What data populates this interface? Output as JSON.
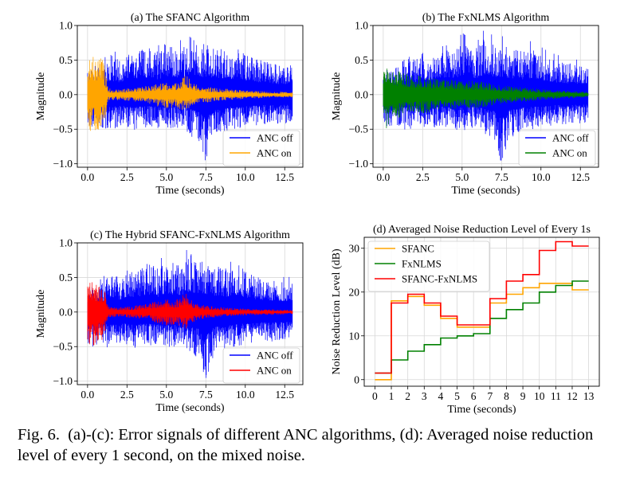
{
  "chart_data": [
    {
      "id": "a",
      "type": "line",
      "title": "(a) The SFANC Algorithm",
      "xlabel": "Time (seconds)",
      "ylabel": "Magnitude",
      "xlim": [
        -0.65,
        13.65
      ],
      "ylim": [
        -1.05,
        1.0
      ],
      "xticks": [
        0.0,
        2.5,
        5.0,
        7.5,
        10.0,
        12.5
      ],
      "xtick_labels": [
        "0.0",
        "2.5",
        "5.0",
        "7.5",
        "10.0",
        "12.5"
      ],
      "yticks": [
        -1.0,
        -0.5,
        0.0,
        0.5,
        1.0
      ],
      "ytick_labels": [
        "−1.0",
        "−0.5",
        "0.0",
        "0.5",
        "1.0"
      ],
      "grid": true,
      "legend_position": "lower-right",
      "series": [
        {
          "name": "ANC off",
          "color": "#0000ff",
          "x": [
            0.0,
            0.5,
            1.0,
            1.5,
            2.0,
            2.5,
            3.0,
            3.5,
            4.0,
            4.5,
            5.0,
            5.5,
            6.0,
            6.5,
            7.0,
            7.5,
            8.0,
            8.5,
            9.0,
            9.5,
            10.0,
            10.5,
            11.0,
            11.5,
            12.0,
            12.5,
            13.0
          ],
          "upper": [
            0.36,
            0.36,
            0.44,
            0.58,
            0.5,
            0.62,
            0.58,
            0.68,
            0.72,
            0.62,
            0.78,
            0.7,
            0.68,
            0.86,
            0.72,
            0.74,
            0.68,
            0.66,
            0.62,
            0.7,
            0.6,
            0.54,
            0.5,
            0.48,
            0.44,
            0.44,
            0.44
          ],
          "lower": [
            -0.5,
            -0.5,
            -0.5,
            -0.52,
            -0.46,
            -0.48,
            -0.52,
            -0.48,
            -0.48,
            -0.5,
            -0.54,
            -0.5,
            -0.46,
            -0.6,
            -0.66,
            -1.0,
            -0.62,
            -0.6,
            -0.5,
            -0.5,
            -0.48,
            -0.46,
            -0.42,
            -0.44,
            -0.42,
            -0.42,
            -0.4
          ]
        },
        {
          "name": "ANC on",
          "color": "#ffa500",
          "x": [
            0.0,
            0.3,
            0.6,
            1.0,
            1.3,
            2.0,
            3.0,
            4.0,
            4.5,
            5.0,
            5.5,
            6.0,
            6.3,
            6.7,
            7.0,
            8.0,
            9.0,
            10.0,
            11.0,
            12.0,
            13.0
          ],
          "upper": [
            0.5,
            0.6,
            0.56,
            0.5,
            0.09,
            0.08,
            0.1,
            0.14,
            0.16,
            0.18,
            0.17,
            0.24,
            0.3,
            0.18,
            0.14,
            0.1,
            0.08,
            0.06,
            0.05,
            0.04,
            0.04
          ],
          "lower": [
            -0.5,
            -0.55,
            -0.52,
            -0.5,
            -0.09,
            -0.08,
            -0.1,
            -0.14,
            -0.18,
            -0.2,
            -0.18,
            -0.22,
            -0.26,
            -0.16,
            -0.14,
            -0.1,
            -0.08,
            -0.06,
            -0.05,
            -0.04,
            -0.04
          ]
        }
      ]
    },
    {
      "id": "b",
      "type": "line",
      "title": "(b) The FxNLMS Algorithm",
      "xlabel": "Time (seconds)",
      "ylabel": "Magnitude",
      "xlim": [
        -0.65,
        13.65
      ],
      "ylim": [
        -1.05,
        1.0
      ],
      "xticks": [
        0.0,
        2.5,
        5.0,
        7.5,
        10.0,
        12.5
      ],
      "xtick_labels": [
        "0.0",
        "2.5",
        "5.0",
        "7.5",
        "10.0",
        "12.5"
      ],
      "yticks": [
        -1.0,
        -0.5,
        0.0,
        0.5,
        1.0
      ],
      "ytick_labels": [
        "−1.0",
        "−0.5",
        "0.0",
        "0.5",
        "1.0"
      ],
      "grid": true,
      "legend_position": "lower-right",
      "series": [
        {
          "name": "ANC off",
          "color": "#0000ff",
          "x": [
            0.0,
            0.5,
            1.0,
            1.5,
            2.0,
            2.5,
            3.0,
            3.5,
            4.0,
            4.5,
            5.0,
            5.5,
            6.0,
            6.5,
            7.0,
            7.5,
            8.0,
            8.5,
            9.0,
            9.5,
            10.0,
            10.5,
            11.0,
            11.5,
            12.0,
            12.5,
            13.0
          ],
          "upper": [
            0.36,
            0.36,
            0.44,
            0.58,
            0.5,
            0.62,
            0.58,
            0.68,
            0.72,
            0.62,
            0.78,
            0.7,
            0.68,
            0.86,
            0.72,
            0.74,
            0.68,
            0.66,
            0.62,
            0.7,
            0.6,
            0.54,
            0.5,
            0.48,
            0.44,
            0.44,
            0.44
          ],
          "lower": [
            -0.5,
            -0.5,
            -0.5,
            -0.52,
            -0.46,
            -0.48,
            -0.52,
            -0.48,
            -0.48,
            -0.5,
            -0.54,
            -0.5,
            -0.46,
            -0.6,
            -0.66,
            -1.0,
            -0.62,
            -0.6,
            -0.5,
            -0.5,
            -0.48,
            -0.46,
            -0.42,
            -0.44,
            -0.42,
            -0.42,
            -0.4
          ]
        },
        {
          "name": "ANC on",
          "color": "#008000",
          "x": [
            0.0,
            0.2,
            0.5,
            1.0,
            1.5,
            2.0,
            3.0,
            4.0,
            5.0,
            6.0,
            7.0,
            8.0,
            9.0,
            10.0,
            11.0,
            12.0,
            13.0
          ],
          "upper": [
            0.44,
            0.52,
            0.42,
            0.34,
            0.3,
            0.28,
            0.26,
            0.22,
            0.2,
            0.2,
            0.16,
            0.12,
            0.1,
            0.08,
            0.06,
            0.05,
            0.04
          ],
          "lower": [
            -0.44,
            -0.5,
            -0.42,
            -0.34,
            -0.3,
            -0.28,
            -0.26,
            -0.22,
            -0.2,
            -0.2,
            -0.16,
            -0.12,
            -0.1,
            -0.08,
            -0.06,
            -0.05,
            -0.04
          ]
        }
      ]
    },
    {
      "id": "c",
      "type": "line",
      "title": "(c) The Hybrid SFANC-FxNLMS Algorithm",
      "xlabel": "Time (seconds)",
      "ylabel": "Magnitude",
      "xlim": [
        -0.65,
        13.65
      ],
      "ylim": [
        -1.05,
        1.0
      ],
      "xticks": [
        0.0,
        2.5,
        5.0,
        7.5,
        10.0,
        12.5
      ],
      "xtick_labels": [
        "0.0",
        "2.5",
        "5.0",
        "7.5",
        "10.0",
        "12.5"
      ],
      "yticks": [
        -1.0,
        -0.5,
        0.0,
        0.5,
        1.0
      ],
      "ytick_labels": [
        "−1.0",
        "−0.5",
        "0.0",
        "0.5",
        "1.0"
      ],
      "grid": true,
      "legend_position": "lower-right",
      "series": [
        {
          "name": "ANC off",
          "color": "#0000ff",
          "x": [
            0.0,
            0.5,
            1.0,
            1.5,
            2.0,
            2.5,
            3.0,
            3.5,
            4.0,
            4.5,
            5.0,
            5.5,
            6.0,
            6.5,
            7.0,
            7.5,
            8.0,
            8.5,
            9.0,
            9.5,
            10.0,
            10.5,
            11.0,
            11.5,
            12.0,
            12.5,
            13.0
          ],
          "upper": [
            0.36,
            0.36,
            0.44,
            0.58,
            0.5,
            0.62,
            0.58,
            0.68,
            0.72,
            0.62,
            0.78,
            0.7,
            0.68,
            0.86,
            0.72,
            0.74,
            0.68,
            0.66,
            0.62,
            0.7,
            0.6,
            0.54,
            0.5,
            0.48,
            0.44,
            0.44,
            0.44
          ],
          "lower": [
            -0.5,
            -0.5,
            -0.5,
            -0.52,
            -0.46,
            -0.48,
            -0.52,
            -0.48,
            -0.48,
            -0.5,
            -0.54,
            -0.5,
            -0.46,
            -0.6,
            -0.66,
            -1.0,
            -0.62,
            -0.6,
            -0.5,
            -0.5,
            -0.48,
            -0.46,
            -0.42,
            -0.44,
            -0.42,
            -0.42,
            -0.4
          ]
        },
        {
          "name": "ANC on",
          "color": "#ff0000",
          "x": [
            0.0,
            0.3,
            0.6,
            1.0,
            1.3,
            2.0,
            3.0,
            4.0,
            4.5,
            5.0,
            5.5,
            6.0,
            6.3,
            6.7,
            7.0,
            8.0,
            9.0,
            10.0,
            11.0,
            12.0,
            13.0
          ],
          "upper": [
            0.46,
            0.5,
            0.44,
            0.4,
            0.08,
            0.07,
            0.09,
            0.13,
            0.16,
            0.2,
            0.17,
            0.24,
            0.3,
            0.16,
            0.12,
            0.08,
            0.06,
            0.05,
            0.04,
            0.04,
            0.03
          ],
          "lower": [
            -0.46,
            -0.5,
            -0.44,
            -0.4,
            -0.08,
            -0.07,
            -0.09,
            -0.13,
            -0.17,
            -0.2,
            -0.18,
            -0.22,
            -0.26,
            -0.16,
            -0.12,
            -0.08,
            -0.06,
            -0.05,
            -0.04,
            -0.04,
            -0.03
          ]
        }
      ]
    },
    {
      "id": "d",
      "type": "line",
      "step": "post",
      "title": "(d) Averaged Noise Reduction Level of Every 1s",
      "xlabel": "Time (seconds)",
      "ylabel": "Noise Reduction Level (dB)",
      "xlim": [
        -0.65,
        13.65
      ],
      "ylim": [
        -1.5,
        32.5
      ],
      "xticks": [
        0,
        1,
        2,
        3,
        4,
        5,
        6,
        7,
        8,
        9,
        10,
        11,
        12,
        13
      ],
      "xtick_labels": [
        "0",
        "1",
        "2",
        "3",
        "4",
        "5",
        "6",
        "7",
        "8",
        "9",
        "10",
        "11",
        "12",
        "13"
      ],
      "yticks": [
        0,
        10,
        20,
        30
      ],
      "ytick_labels": [
        "0",
        "10",
        "20",
        "30"
      ],
      "grid": true,
      "legend_position": "upper-left",
      "x": [
        0,
        1,
        2,
        3,
        4,
        5,
        6,
        7,
        8,
        9,
        10,
        11,
        12,
        13
      ],
      "series": [
        {
          "name": "SFANC",
          "color": "#ffa500",
          "values": [
            0.0,
            18.0,
            19.0,
            17.0,
            14.0,
            12.0,
            12.0,
            17.5,
            19.5,
            21.0,
            22.0,
            22.0,
            20.5,
            20.5
          ]
        },
        {
          "name": "FxNLMS",
          "color": "#008000",
          "values": [
            1.5,
            4.5,
            6.5,
            8.0,
            9.5,
            10.0,
            10.5,
            14.0,
            16.0,
            17.5,
            20.0,
            21.5,
            22.5,
            22.5
          ]
        },
        {
          "name": "SFANC-FxNLMS",
          "color": "#ff0000",
          "values": [
            1.5,
            17.5,
            19.5,
            17.5,
            14.5,
            12.5,
            12.5,
            18.5,
            22.5,
            24.0,
            29.5,
            31.5,
            30.5,
            30.5
          ]
        }
      ]
    }
  ],
  "caption": {
    "label": "Fig. 6.",
    "text": "(a)-(c): Error signals of different ANC algorithms, (d): Averaged noise reduction level of every 1 second, on the mixed noise."
  }
}
